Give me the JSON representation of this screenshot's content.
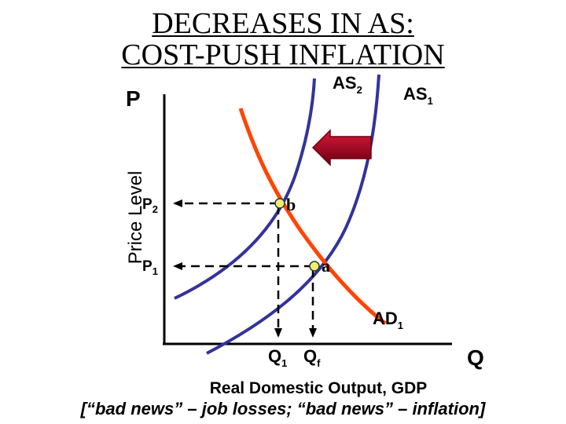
{
  "title": {
    "line1": "DECREASES IN AS:",
    "line2": "COST-PUSH INFLATION"
  },
  "axes": {
    "y_letter": "P",
    "y_label": "Price Level",
    "x_letter": "Q",
    "x_label": "Real Domestic Output, GDP"
  },
  "curves": {
    "as2": {
      "name": "AS",
      "sub": "2",
      "color": "#33339a"
    },
    "as1": {
      "name": "AS",
      "sub": "1",
      "color": "#33339a"
    },
    "ad1": {
      "name": "AD",
      "sub": "1",
      "color": "#ff4500"
    }
  },
  "price_levels": {
    "p2": {
      "name": "P",
      "sub": "2"
    },
    "p1": {
      "name": "P",
      "sub": "1"
    }
  },
  "quantities": {
    "q1": {
      "name": "Q",
      "sub": "1"
    },
    "qf": {
      "name": "Q",
      "sub": "f"
    }
  },
  "points": {
    "b": "b",
    "a": "a"
  },
  "shift_arrow": {
    "color": "#a0001a",
    "direction": "left"
  },
  "footer": "[“bad news” – job losses; “bad news” – inflation]"
}
